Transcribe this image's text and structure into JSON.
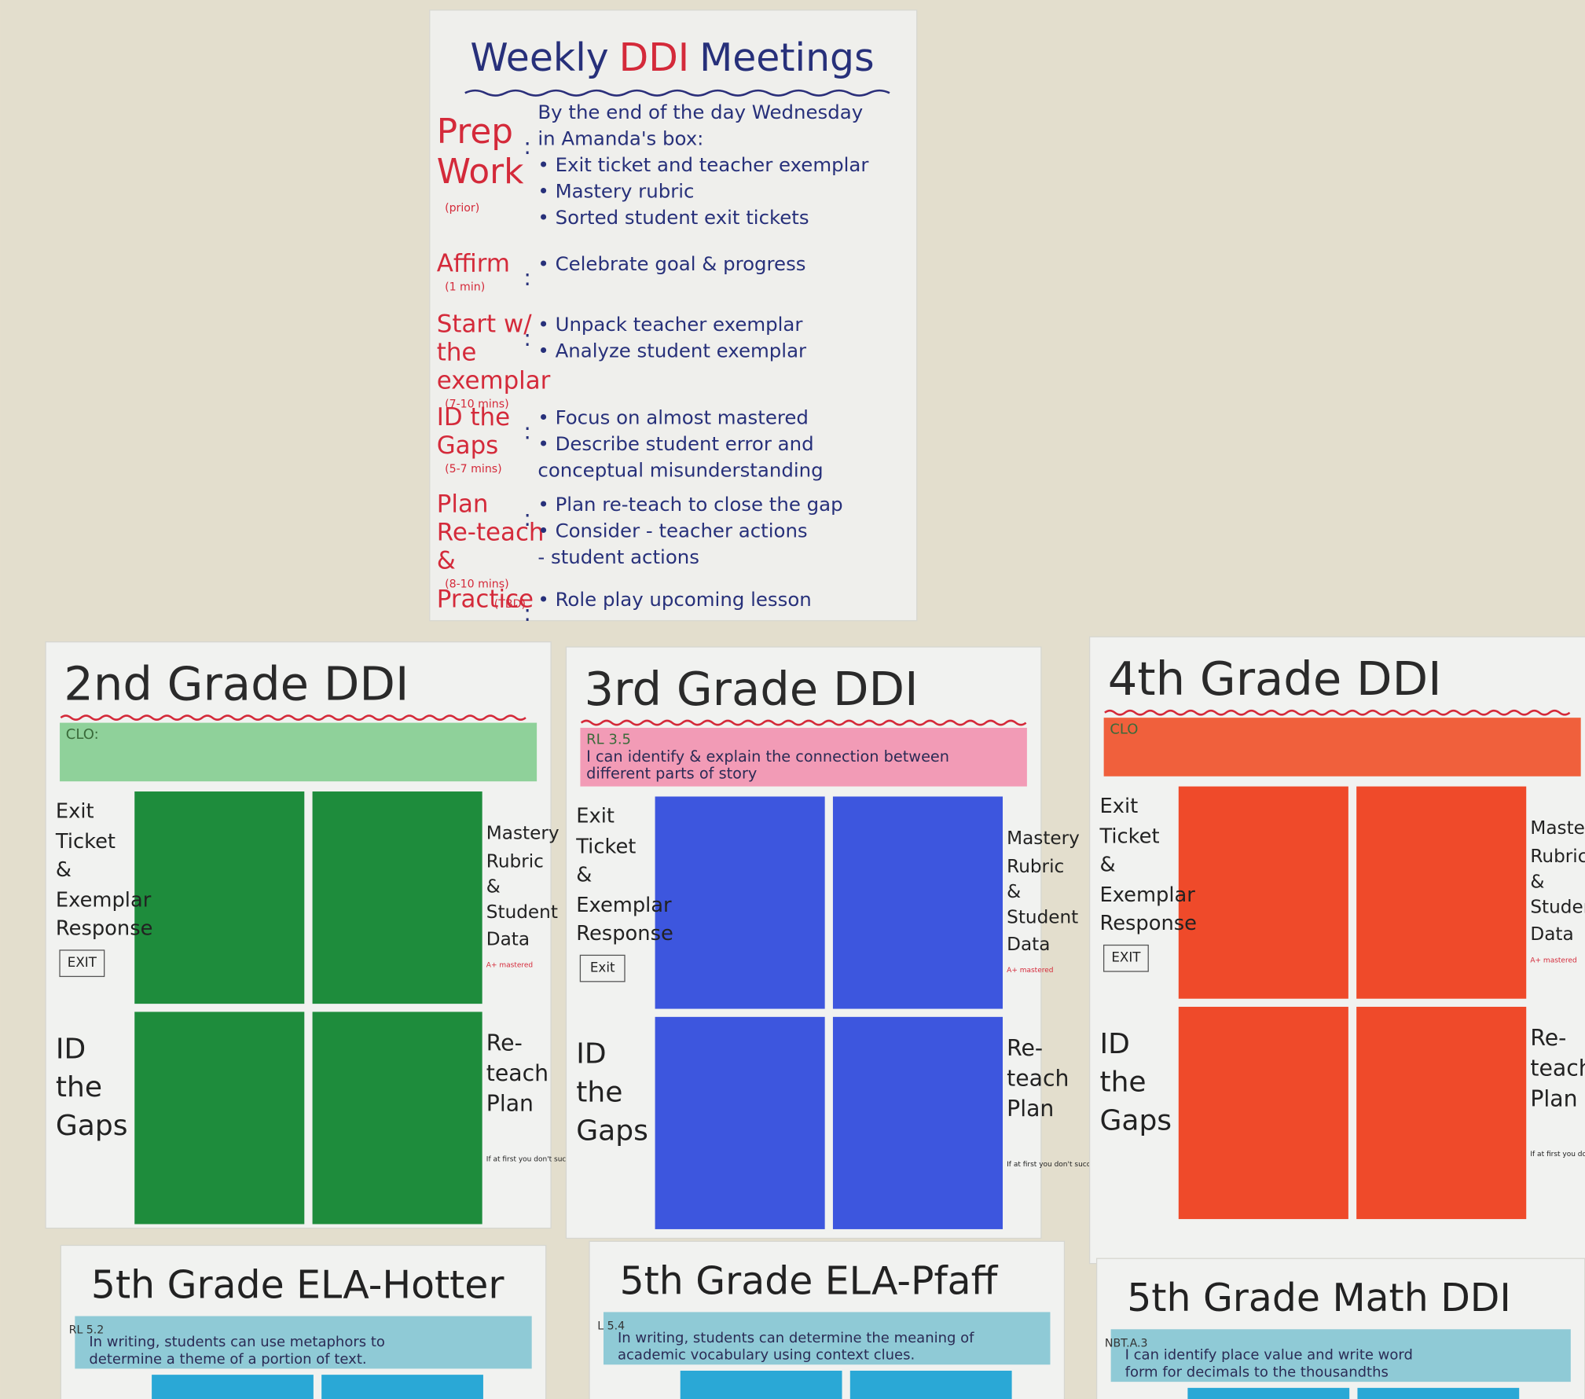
{
  "top_poster": {
    "title_parts": [
      "Weekly",
      "DDI",
      "Meetings"
    ],
    "sections": [
      {
        "label": [
          "Prep",
          "Work"
        ],
        "note": "(prior)",
        "items": [
          "By the end of the day Wednesday",
          "in Amanda's box:",
          "• Exit ticket and teacher exemplar",
          "• Mastery rubric",
          "• Sorted student exit tickets"
        ]
      },
      {
        "label": [
          "Affirm"
        ],
        "note": "(1 min)",
        "items": [
          "• Celebrate goal & progress"
        ]
      },
      {
        "label": [
          "Start w/",
          "the",
          "exemplar"
        ],
        "note": "(7-10 mins)",
        "items": [
          "• Unpack teacher exemplar",
          "• Analyze student exemplar"
        ]
      },
      {
        "label": [
          "ID the",
          "Gaps"
        ],
        "note": "(5-7 mins)",
        "items": [
          "• Focus on almost mastered",
          "• Describe student error and",
          "conceptual misunderstanding"
        ]
      },
      {
        "label": [
          "Plan",
          "Re-teach",
          "&"
        ],
        "note": "(8-10 mins)",
        "items": [
          "• Plan re-teach to close the gap",
          "• Consider - teacher actions",
          "- student actions"
        ]
      },
      {
        "label": [
          "Practice"
        ],
        "note": "(TBD)",
        "items": [
          "• Role play upcoming lesson"
        ]
      }
    ]
  },
  "grade_posters": [
    {
      "title": "2nd Grade DDI",
      "color": "#1e8c3c",
      "band": "#8fd19a",
      "clo": [
        "CLO:"
      ],
      "left": [
        "Exit",
        "Ticket",
        "&",
        "Exemplar",
        "Response",
        "EXIT",
        "ID",
        "the",
        "Gaps"
      ],
      "right": [
        "Mastery",
        "Rubric",
        "&",
        "Student",
        "Data",
        "A+ mastered",
        "Re-",
        "teach",
        "Plan",
        "If at first you don't succeed"
      ]
    },
    {
      "title": "3rd Grade DDI",
      "color": "#3d56de",
      "band": "#f29bb6",
      "clo": [
        "RL 3.5",
        "I can identify & explain the connection between",
        "different parts of story"
      ],
      "left": [
        "Exit",
        "Ticket",
        "&",
        "Exemplar",
        "Response",
        "Exit",
        "ID",
        "the",
        "Gaps"
      ],
      "right": [
        "Mastery",
        "Rubric",
        "&",
        "Student",
        "Data",
        "A+ mastered",
        "Re-",
        "teach",
        "Plan",
        "If at first you don't succeed"
      ]
    },
    {
      "title": "4th Grade DDI",
      "color": "#ef4a2a",
      "band": "#f0603c",
      "clo": [
        "CLO"
      ],
      "left": [
        "Exit",
        "Ticket",
        "&",
        "Exemplar",
        "Response",
        "EXIT",
        "ID",
        "the",
        "Gaps"
      ],
      "right": [
        "Mastery",
        "Rubric",
        "&",
        "Student",
        "Data",
        "A+ mastered",
        "Re-",
        "teach",
        "Plan",
        "If at first you don't succeed"
      ]
    }
  ],
  "bottom_posters": [
    {
      "title": "5th Grade ELA-Hotter",
      "code": "RL 5.2",
      "clo": [
        "In writing, students can use metaphors to",
        "determine a theme of a portion of text."
      ]
    },
    {
      "title": "5th Grade ELA-Pfaff",
      "code": "L 5.4",
      "clo": [
        "In writing, students can determine the meaning of",
        "academic vocabulary using context clues."
      ]
    },
    {
      "title": "5th Grade Math DDI",
      "code": "NBT.A.3",
      "clo": [
        "I can identify place value and write word",
        "form for decimals to the thousandths"
      ]
    }
  ]
}
